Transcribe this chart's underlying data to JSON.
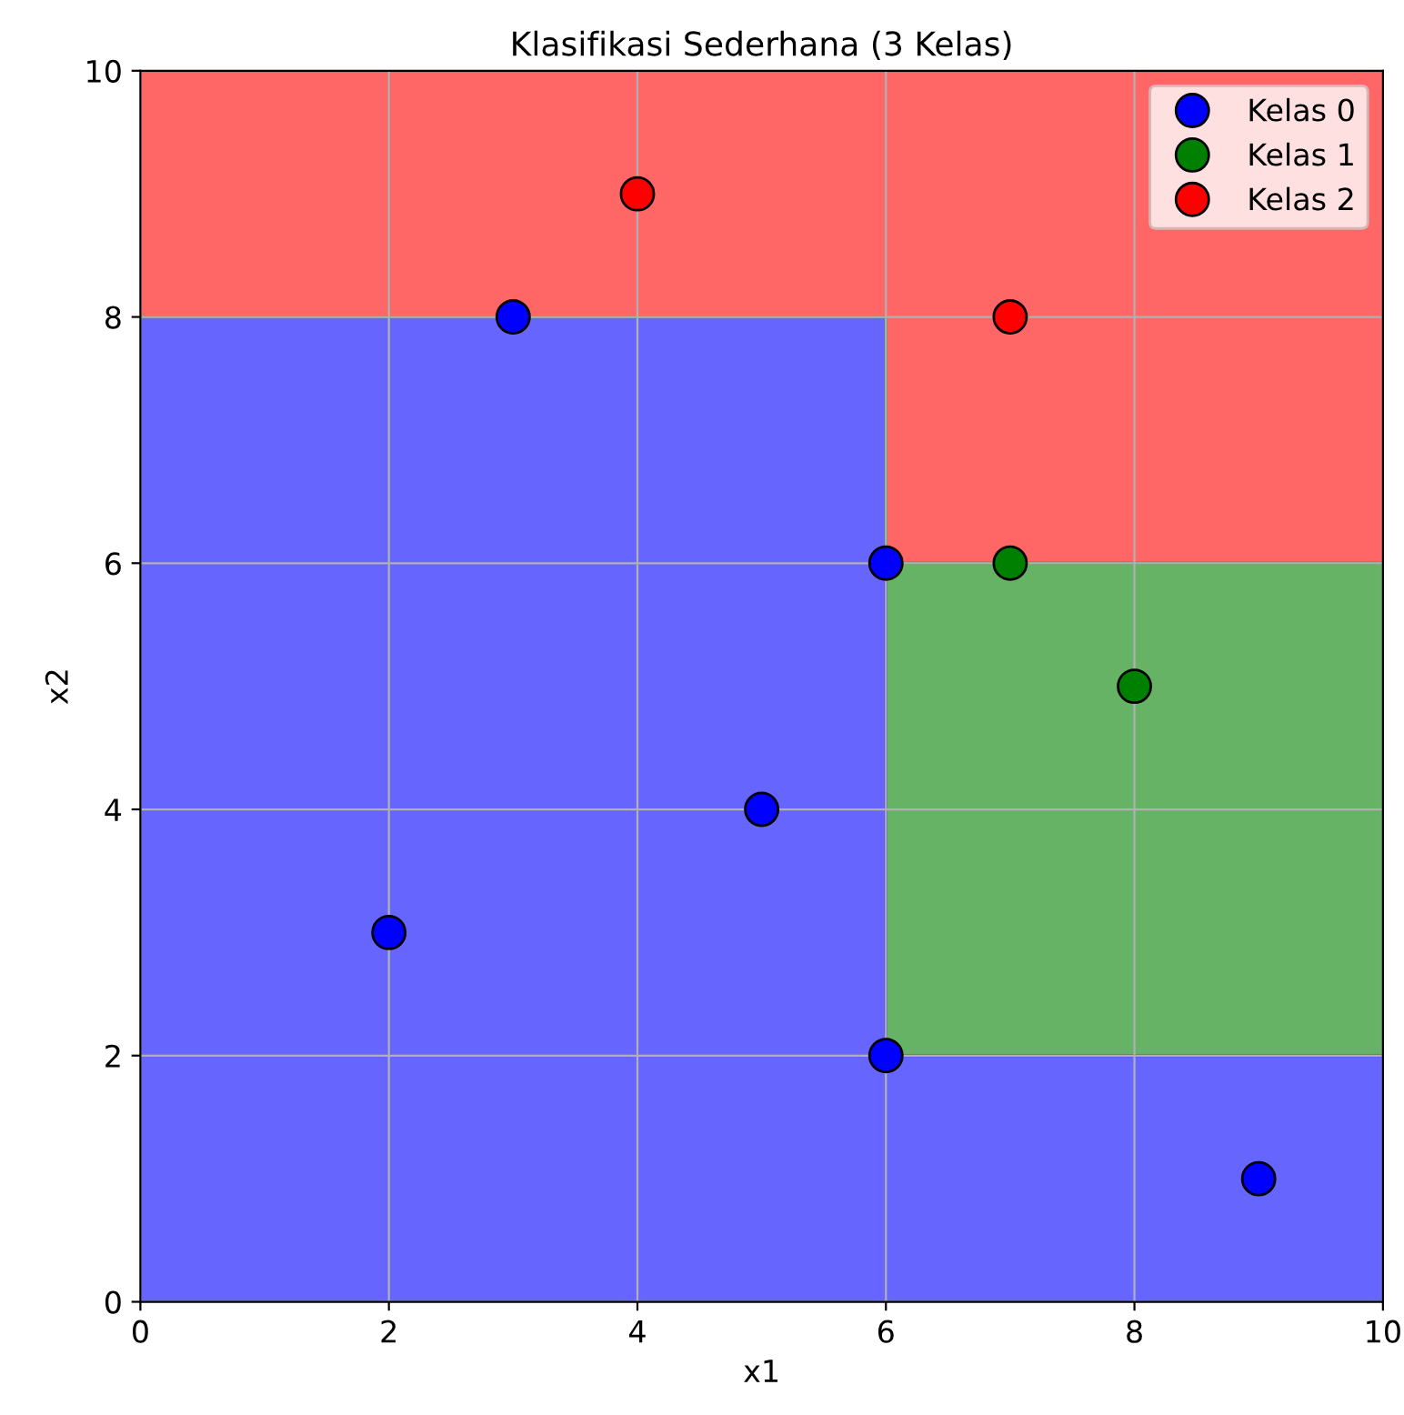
{
  "chart_data": {
    "type": "scatter",
    "title": "Klasifikasi Sederhana (3 Kelas)",
    "xlabel": "x1",
    "ylabel": "x2",
    "xlim": [
      0,
      10
    ],
    "ylim": [
      0,
      10
    ],
    "xticks": [
      0,
      2,
      4,
      6,
      8,
      10
    ],
    "yticks": [
      0,
      2,
      4,
      6,
      8,
      10
    ],
    "grid": true,
    "legend": "top right",
    "stacked": true,
    "series": [
      {
        "name": "Kelas 0",
        "marker": "circle",
        "color": "#0000ff",
        "x": [
          3,
          6,
          5,
          2,
          6,
          9
        ],
        "values": [
          8,
          6,
          4,
          3,
          2,
          1
        ]
      },
      {
        "name": "Kelas 1",
        "marker": "circle",
        "color": "#008000",
        "x": [
          7,
          8
        ],
        "values": [
          6,
          5
        ]
      },
      {
        "name": "Kelas 2",
        "marker": "circle",
        "color": "#ff0000",
        "x": [
          4,
          7
        ],
        "values": [
          9,
          8
        ]
      },
      {
        "type": "area",
        "color": "#6666ff",
        "x": [
          0,
          6,
          6,
          10
        ],
        "values": [
          8,
          8,
          2,
          2
        ]
      },
      {
        "type": "area",
        "color": "#66b366",
        "x": [
          0,
          6,
          6,
          10
        ],
        "values": [
          0,
          0,
          4,
          4
        ]
      },
      {
        "type": "area",
        "color": "#ff6666",
        "x": [
          0,
          6,
          6,
          10
        ],
        "values": [
          2,
          2,
          4,
          4
        ]
      }
    ]
  }
}
